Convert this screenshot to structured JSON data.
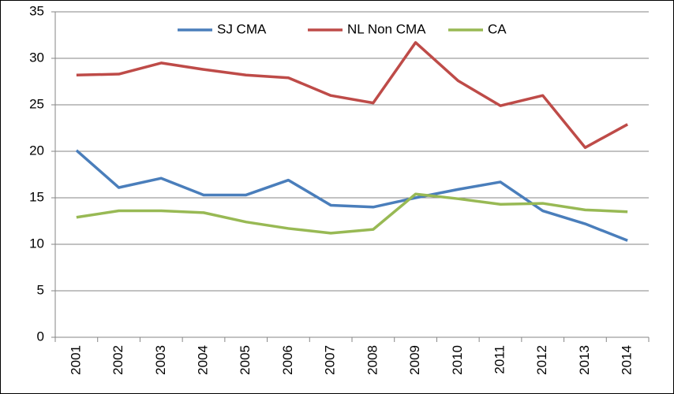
{
  "chart_data": {
    "type": "line",
    "categories": [
      "2001",
      "2002",
      "2003",
      "2004",
      "2005",
      "2006",
      "2007",
      "2008",
      "2009",
      "2010",
      "2011",
      "2012",
      "2013",
      "2014"
    ],
    "series": [
      {
        "name": "SJ CMA",
        "color": "#4a7ebb",
        "values": [
          20.1,
          16.1,
          17.1,
          15.3,
          15.3,
          16.9,
          14.2,
          14.0,
          15.0,
          15.9,
          16.7,
          13.6,
          12.2,
          10.4
        ]
      },
      {
        "name": "NL Non CMA",
        "color": "#be4b48",
        "values": [
          28.2,
          28.3,
          29.5,
          28.8,
          28.2,
          27.9,
          26.0,
          25.2,
          31.7,
          27.6,
          24.9,
          26.0,
          20.4,
          22.9
        ]
      },
      {
        "name": "CA",
        "color": "#98b954",
        "values": [
          12.9,
          13.6,
          13.6,
          13.4,
          12.4,
          11.7,
          11.2,
          11.6,
          15.4,
          14.9,
          14.3,
          14.4,
          13.7,
          13.5
        ]
      }
    ],
    "ylim": [
      0,
      35
    ],
    "yticks": [
      0,
      5,
      10,
      15,
      20,
      25,
      30,
      35
    ],
    "grid": true,
    "legend": "top"
  }
}
